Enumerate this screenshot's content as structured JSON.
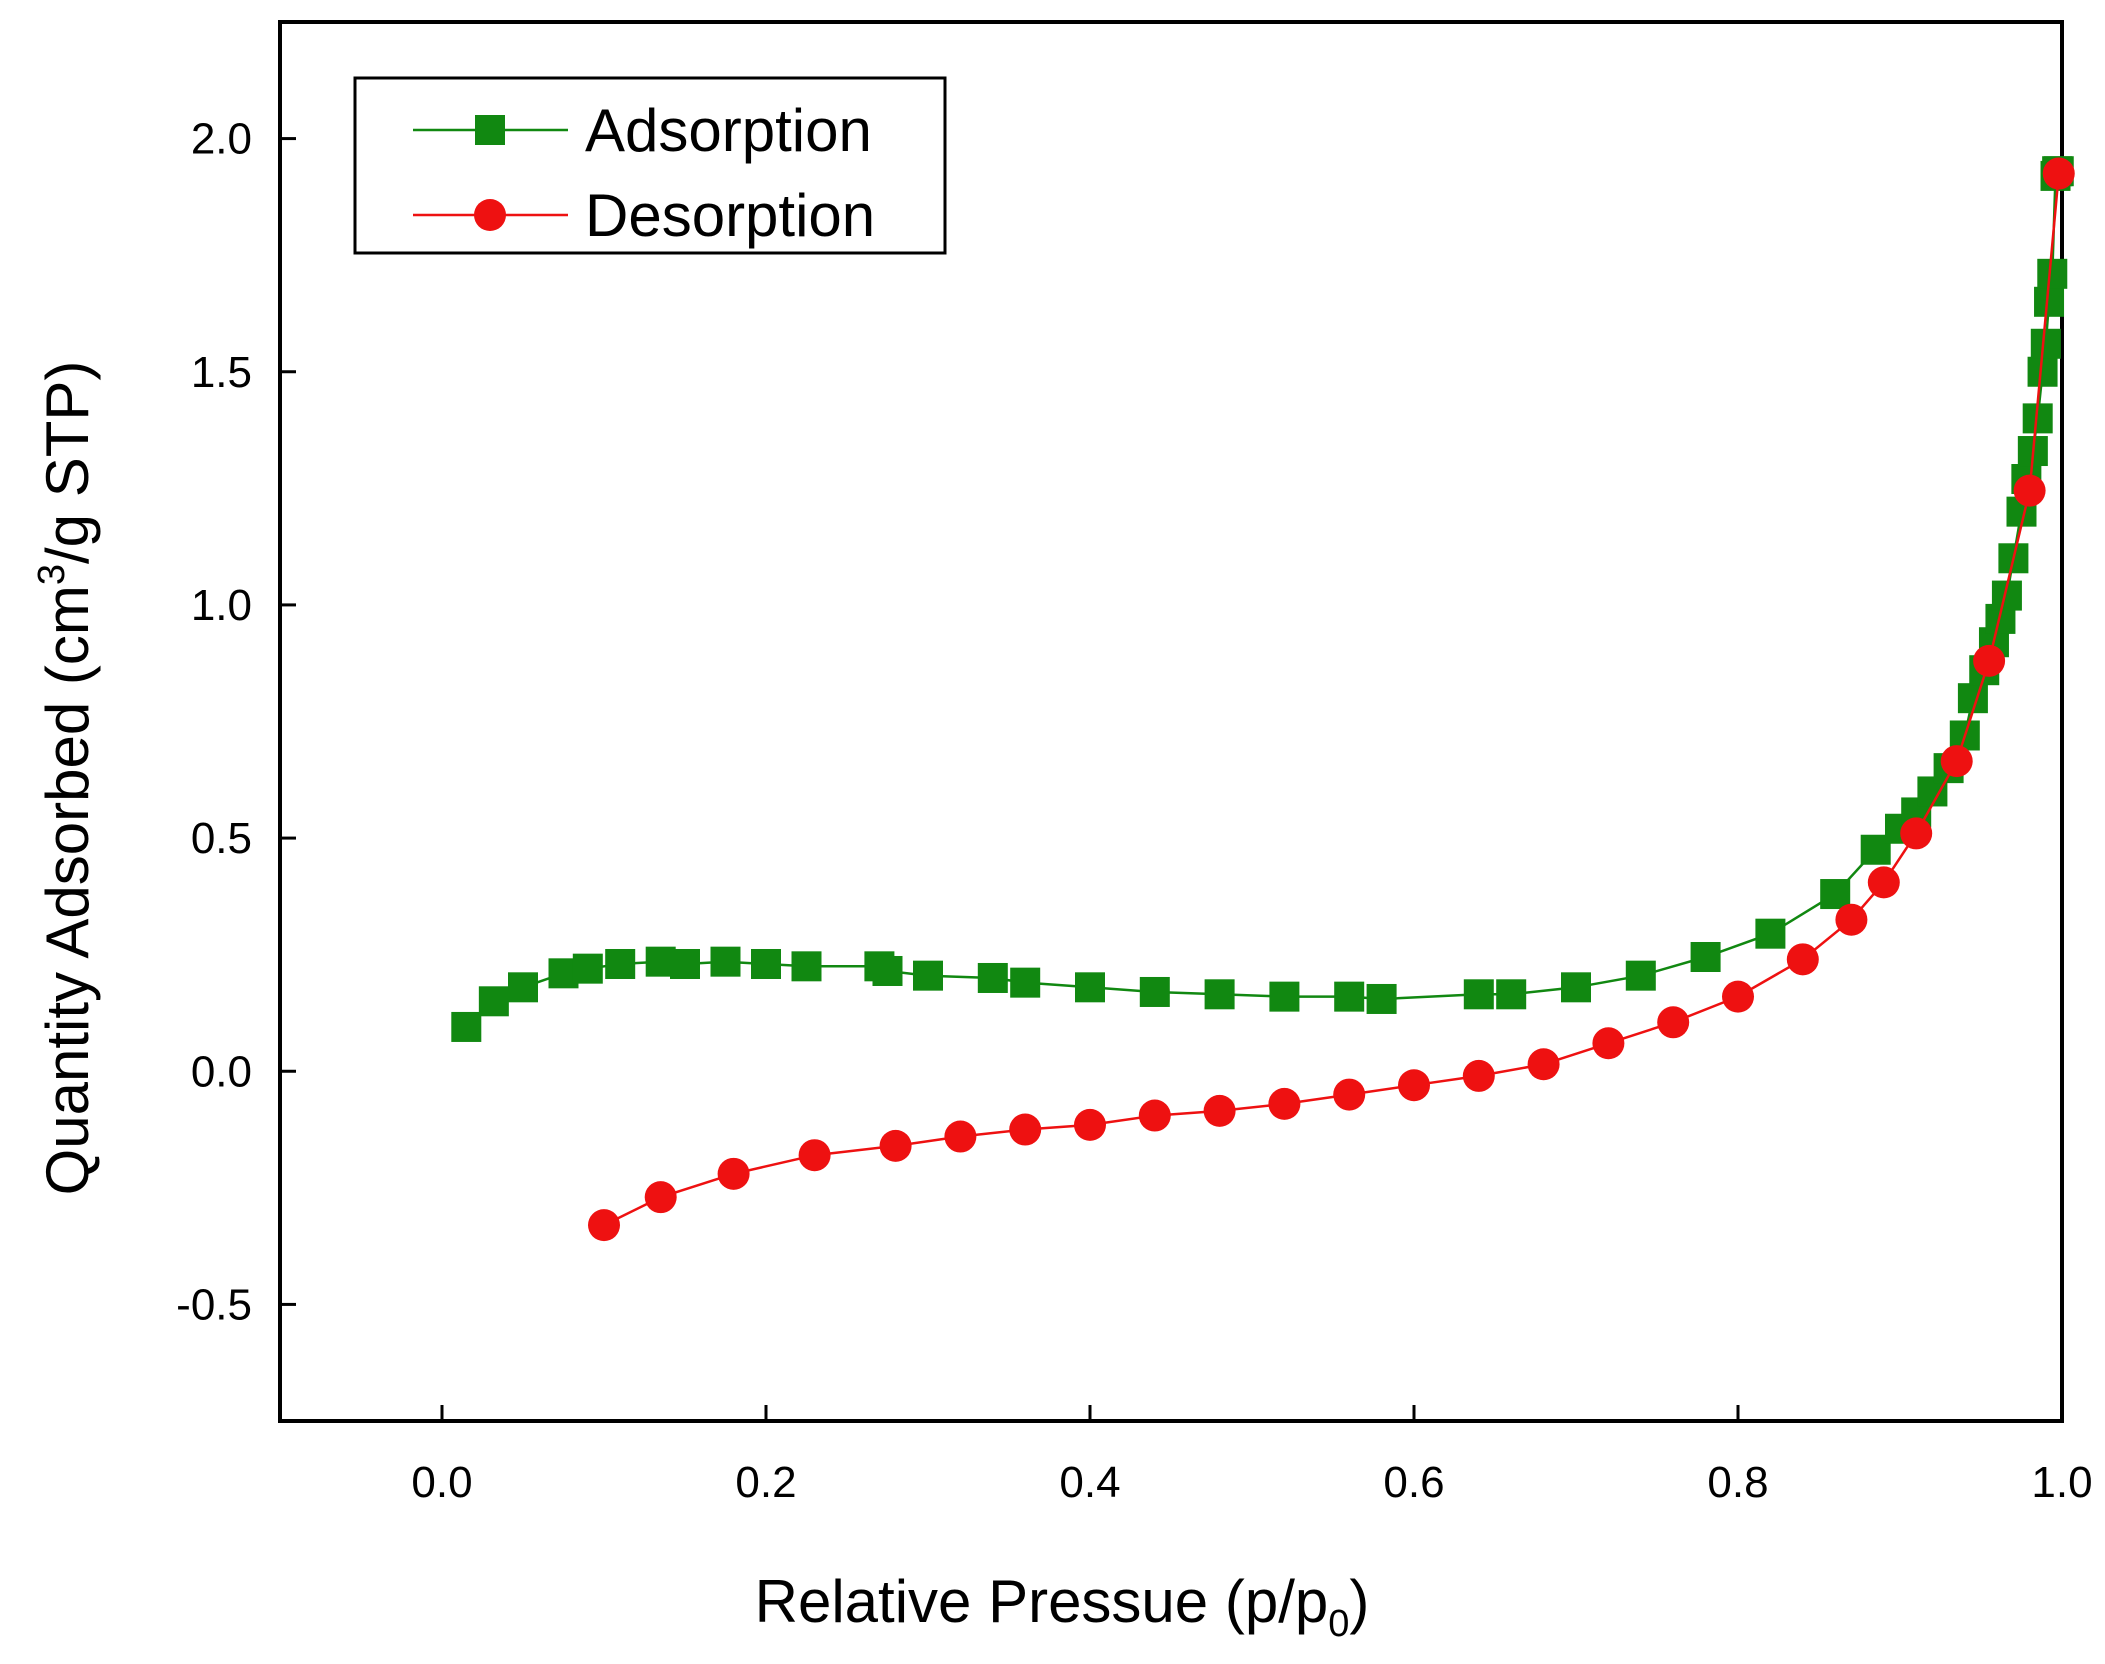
{
  "chart_data": {
    "type": "line",
    "title": "",
    "xlabel": "Relative Pressue (p/p0)",
    "xlabel_parts": {
      "main": "Relative Pressue (p/p",
      "sub": "0",
      "tail": ")"
    },
    "ylabel": "Quantity Adsorbed (cm3/g STP)",
    "ylabel_parts": {
      "main": "Quantity Adsorbed (cm",
      "sup": "3",
      "tail": "/g STP)"
    },
    "xlim": [
      -0.1,
      1.0
    ],
    "ylim": [
      -0.75,
      2.25
    ],
    "xticks": [
      0.0,
      0.2,
      0.4,
      0.6,
      0.8,
      1.0
    ],
    "xtick_labels": [
      "0.0",
      "0.2",
      "0.4",
      "0.6",
      "0.8",
      "1.0"
    ],
    "yticks": [
      -0.5,
      0.0,
      0.5,
      1.0,
      1.5,
      2.0
    ],
    "ytick_labels": [
      "-0.5",
      "0.0",
      "0.5",
      "1.0",
      "1.5",
      "2.0"
    ],
    "grid": false,
    "legend_position": "top-left",
    "series": [
      {
        "name": "Adsorption",
        "color": "#118811",
        "marker": "square",
        "x": [
          0.015,
          0.032,
          0.05,
          0.075,
          0.09,
          0.11,
          0.135,
          0.15,
          0.175,
          0.2,
          0.225,
          0.27,
          0.275,
          0.3,
          0.34,
          0.36,
          0.4,
          0.44,
          0.48,
          0.52,
          0.56,
          0.58,
          0.64,
          0.66,
          0.7,
          0.74,
          0.78,
          0.82,
          0.86,
          0.885,
          0.9,
          0.91,
          0.92,
          0.93,
          0.94,
          0.945,
          0.952,
          0.958,
          0.962,
          0.966,
          0.97,
          0.975,
          0.978,
          0.982,
          0.985,
          0.988,
          0.99,
          0.992,
          0.994,
          0.996,
          0.997,
          0.998
        ],
        "y": [
          0.095,
          0.15,
          0.18,
          0.21,
          0.22,
          0.23,
          0.235,
          0.23,
          0.235,
          0.23,
          0.225,
          0.225,
          0.215,
          0.205,
          0.2,
          0.19,
          0.18,
          0.17,
          0.165,
          0.16,
          0.16,
          0.155,
          0.165,
          0.165,
          0.18,
          0.205,
          0.245,
          0.295,
          0.38,
          0.475,
          0.52,
          0.555,
          0.6,
          0.65,
          0.72,
          0.8,
          0.86,
          0.92,
          0.97,
          1.02,
          1.1,
          1.2,
          1.27,
          1.33,
          1.4,
          1.5,
          1.56,
          1.65,
          1.71,
          1.92,
          1.93,
          1.93
        ]
      },
      {
        "name": "Desorption",
        "color": "#ee1111",
        "marker": "circle",
        "x": [
          0.1,
          0.135,
          0.18,
          0.23,
          0.28,
          0.32,
          0.36,
          0.4,
          0.44,
          0.48,
          0.52,
          0.56,
          0.6,
          0.64,
          0.68,
          0.72,
          0.76,
          0.8,
          0.84,
          0.87,
          0.89,
          0.91,
          0.935,
          0.955,
          0.98,
          0.998
        ],
        "y": [
          -0.33,
          -0.27,
          -0.22,
          -0.18,
          -0.16,
          -0.14,
          -0.125,
          -0.115,
          -0.095,
          -0.085,
          -0.07,
          -0.05,
          -0.03,
          -0.01,
          0.015,
          0.06,
          0.105,
          0.16,
          0.24,
          0.325,
          0.405,
          0.51,
          0.665,
          0.88,
          1.245,
          1.925
        ]
      }
    ]
  }
}
